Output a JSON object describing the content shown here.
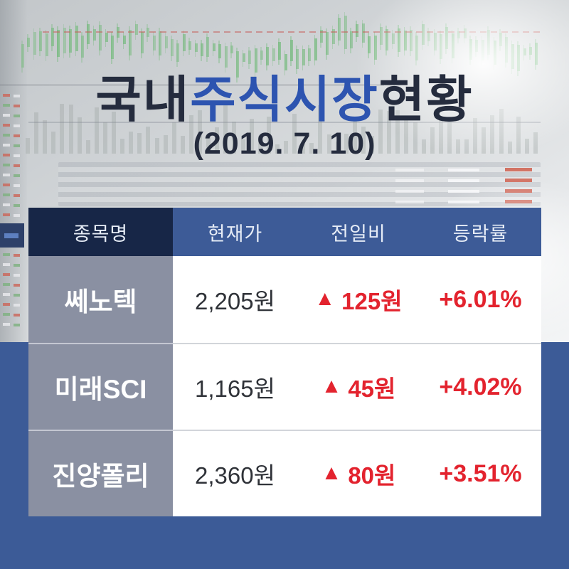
{
  "title": {
    "prefix": "국내",
    "highlight": "주식시장",
    "suffix": "현황",
    "date": "(2019. 7. 10)"
  },
  "table": {
    "headers": [
      "종목명",
      "현재가",
      "전일비",
      "등락률"
    ],
    "rows": [
      {
        "name": "쎄노텍",
        "price": "2,205원",
        "change_symbol": "▲",
        "change": "125원",
        "rate": "+6.01%"
      },
      {
        "name": "미래SCI",
        "price": "1,165원",
        "change_symbol": "▲",
        "change": "45원",
        "rate": "+4.02%"
      },
      {
        "name": "진양폴리",
        "price": "2,360원",
        "change_symbol": "▲",
        "change": "80원",
        "rate": "+3.51%"
      }
    ]
  },
  "chart_data": {
    "type": "table",
    "title": "국내주식시장현황",
    "date": "2019.7.10",
    "columns": [
      "종목명",
      "현재가",
      "전일비",
      "등락률"
    ],
    "rows": [
      [
        "쎄노텍",
        "2,205원",
        "▲125원",
        "+6.01%"
      ],
      [
        "미래SCI",
        "1,165원",
        "▲45원",
        "+4.02%"
      ],
      [
        "진양폴리",
        "2,360원",
        "▲80원",
        "+3.51%"
      ]
    ]
  },
  "colors": {
    "header_dark": "#172647",
    "header_blue": "#3d5b97",
    "panel_blue": "#3c5b97",
    "name_cell_gray": "#8a90a2",
    "up_red": "#e3232e",
    "title_navy": "#252c3e",
    "title_blue": "#2d54b0",
    "price_text": "#2f3238"
  }
}
